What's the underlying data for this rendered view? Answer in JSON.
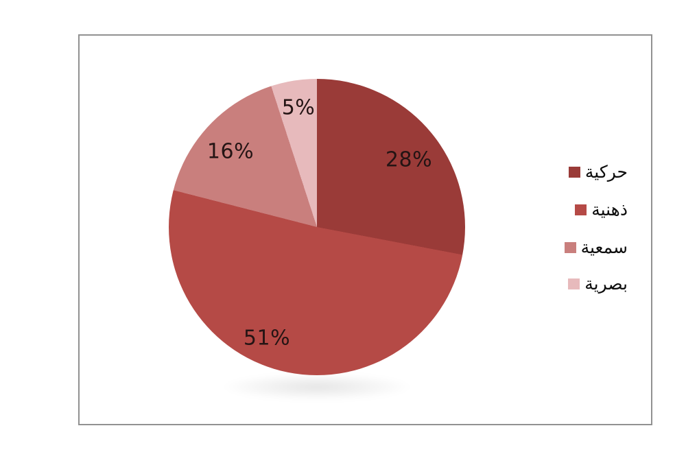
{
  "chart_data": {
    "type": "pie",
    "title": "",
    "categories": [
      "حركية",
      "ذهنية",
      "سمعية",
      "بصرية"
    ],
    "values": [
      28,
      51,
      16,
      5
    ],
    "value_unit": "%",
    "data_labels": [
      "28%",
      "51%",
      "16%",
      "5%"
    ],
    "colors": [
      "#9a3b38",
      "#b54a46",
      "#c97f7d",
      "#e7babc"
    ],
    "start_angle_deg": 0,
    "direction": "clockwise",
    "legend_position": "right",
    "grid": false,
    "frame_border_color": "#919191",
    "label_text_color": "#241414"
  },
  "legend": {
    "items": [
      {
        "label": "حركية",
        "color": "#9a3b38"
      },
      {
        "label": "ذهنية",
        "color": "#b54a46"
      },
      {
        "label": "سمعية",
        "color": "#c97f7d"
      },
      {
        "label": "بصرية",
        "color": "#e7babc"
      }
    ]
  }
}
